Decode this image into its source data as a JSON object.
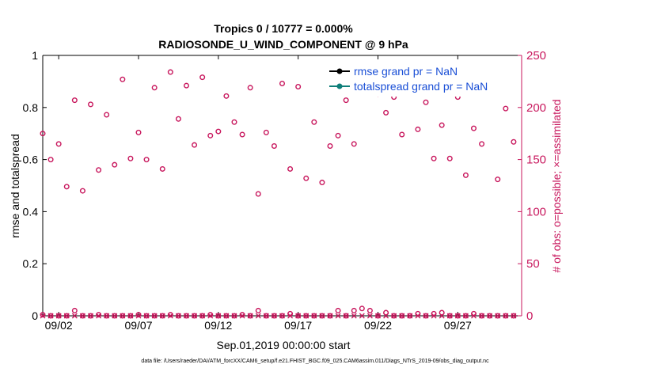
{
  "chart_data": {
    "type": "scatter",
    "title_line1": "Tropics 0 / 10777 = 0.000%",
    "title_line2": "RADIOSONDE_U_WIND_COMPONENT @ 9 hPa",
    "xlabel": "Sep.01,2019 00:00:00 start",
    "ylabel": "rmse and totalspread",
    "ylabel_right": "# of obs: o=possible; ×=assimilated",
    "ylim": [
      0,
      1
    ],
    "ylim_right": [
      0,
      250
    ],
    "xlim": [
      1,
      31
    ],
    "x_ticks": [
      2,
      7,
      12,
      17,
      22,
      27
    ],
    "x_tick_labels": [
      "09/02",
      "09/07",
      "09/12",
      "09/17",
      "09/22",
      "09/27"
    ],
    "y_ticks": [
      0,
      0.2,
      0.4,
      0.6,
      0.8,
      1
    ],
    "y_tick_labels": [
      "0",
      "0.2",
      "0.4",
      "0.6",
      "0.8",
      "1"
    ],
    "y_right_ticks": [
      0,
      50,
      100,
      150,
      200,
      250
    ],
    "y_right_tick_labels": [
      "0",
      "50",
      "100",
      "150",
      "200",
      "250"
    ],
    "legend": [
      {
        "label": "rmse grand pr = NaN",
        "color": "#000000"
      },
      {
        "label": "totalspread grand pr = NaN",
        "color": "#0f7f7a"
      }
    ],
    "series": [
      {
        "name": "possible (upper)",
        "marker": "circle",
        "color": "#c8175d",
        "x": [
          1.0,
          1.5,
          2.0,
          2.5,
          3.0,
          3.5,
          4.0,
          4.5,
          5.0,
          5.5,
          6.0,
          6.5,
          7.0,
          7.5,
          8.0,
          8.5,
          9.0,
          9.5,
          10.0,
          10.5,
          11.0,
          11.5,
          12.0,
          12.5,
          13.0,
          13.5,
          14.0,
          14.5,
          15.0,
          15.5,
          16.0,
          16.5,
          17.0,
          17.5,
          18.0,
          18.5,
          19.0,
          19.5,
          20.0,
          20.5,
          21.0,
          21.5,
          22.0,
          22.5,
          23.0,
          23.5,
          24.0,
          24.5,
          25.0,
          25.5,
          26.0,
          26.5,
          27.0,
          27.5,
          28.0,
          28.5,
          29.0,
          29.5,
          30.0,
          30.5
        ],
        "y": [
          175,
          150,
          165,
          124,
          207,
          120,
          203,
          140,
          193,
          145,
          227,
          151,
          176,
          150,
          219,
          141,
          234,
          189,
          221,
          164,
          229,
          173,
          177,
          211,
          186,
          174,
          219,
          117,
          176,
          163,
          223,
          141,
          220,
          132,
          186,
          128,
          163,
          173,
          207,
          165,
          218,
          217,
          213,
          195,
          210,
          174,
          218,
          179,
          205,
          151,
          183,
          151,
          210,
          135,
          180,
          165,
          229,
          131,
          199,
          167
        ]
      },
      {
        "name": "possible (lower)",
        "marker": "circle",
        "color": "#c8175d",
        "x": [
          1.0,
          1.5,
          2.0,
          2.5,
          3.0,
          3.5,
          4.0,
          4.5,
          5.0,
          5.5,
          6.0,
          6.5,
          7.0,
          7.5,
          8.0,
          8.5,
          9.0,
          9.5,
          10.0,
          10.5,
          11.0,
          11.5,
          12.0,
          12.5,
          13.0,
          13.5,
          14.0,
          14.5,
          15.0,
          15.5,
          16.0,
          16.5,
          17.0,
          17.5,
          18.0,
          18.5,
          19.0,
          19.5,
          20.0,
          20.5,
          21.0,
          21.5,
          22.0,
          22.5,
          23.0,
          23.5,
          24.0,
          24.5,
          25.0,
          25.5,
          26.0,
          26.5,
          27.0,
          27.5,
          28.0,
          28.5,
          29.0,
          29.5,
          30.0,
          30.5
        ],
        "y": [
          1,
          0,
          0,
          0,
          5,
          0,
          0,
          1,
          0,
          0,
          0,
          0,
          1,
          0,
          0,
          0,
          1,
          0,
          0,
          0,
          0,
          1,
          0,
          0,
          0,
          1,
          0,
          5,
          0,
          0,
          0,
          2,
          0,
          0,
          0,
          0,
          0,
          5,
          0,
          5,
          7,
          5,
          0,
          3,
          0,
          0,
          0,
          2,
          0,
          2,
          3,
          0,
          0,
          0,
          2,
          0,
          0,
          0,
          0,
          0
        ]
      },
      {
        "name": "assimilated",
        "marker": "x",
        "color": "#c8175d",
        "x": [
          1.0,
          1.5,
          2.0,
          2.5,
          3.0,
          3.5,
          4.0,
          4.5,
          5.0,
          5.5,
          6.0,
          6.5,
          7.0,
          7.5,
          8.0,
          8.5,
          9.0,
          9.5,
          10.0,
          10.5,
          11.0,
          11.5,
          12.0,
          12.5,
          13.0,
          13.5,
          14.0,
          14.5,
          15.0,
          15.5,
          16.0,
          16.5,
          17.0,
          17.5,
          18.0,
          18.5,
          19.0,
          19.5,
          20.0,
          20.5,
          21.0,
          21.5,
          22.0,
          22.5,
          23.0,
          23.5,
          24.0,
          24.5,
          25.0,
          25.5,
          26.0,
          26.5,
          27.0,
          27.5,
          28.0,
          28.5,
          29.0,
          29.5,
          30.0,
          30.5
        ],
        "y": [
          0,
          0,
          0,
          0,
          0,
          0,
          0,
          0,
          0,
          0,
          0,
          0,
          0,
          0,
          0,
          0,
          0,
          0,
          0,
          0,
          0,
          0,
          0,
          0,
          0,
          0,
          0,
          0,
          0,
          0,
          0,
          0,
          0,
          0,
          0,
          0,
          0,
          0,
          0,
          0,
          0,
          0,
          0,
          0,
          0,
          0,
          0,
          0,
          0,
          0,
          0,
          0,
          0,
          0,
          0,
          0,
          0,
          0,
          0,
          0
        ]
      }
    ],
    "footnote": "data file: /Users/raeder/DAI/ATM_forcXX/CAM6_setup/f.e21.FHIST_BGC.f09_025.CAM6assim.011/Diags_NTrS_2019-09/obs_diag_output.nc"
  }
}
